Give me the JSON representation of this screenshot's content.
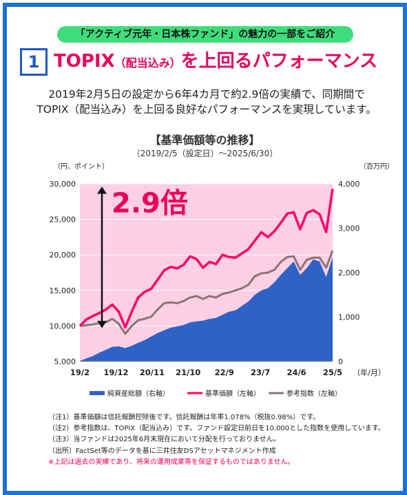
{
  "badge": "「アクティブ元年・日本株ファンド」の魅力の一部をご紹介",
  "section_number": "1",
  "headline": {
    "part1": "TOPIX",
    "part2": "（配当込み）",
    "part3": "を上回るパフォーマンス"
  },
  "lead": {
    "line1": "2019年2月5日の設定から6年4カ月で約2.9倍の実績で、同期間で",
    "line2": "TOPIX（配当込み）を上回る良好なパフォーマンスを実現しています。"
  },
  "colors": {
    "accent_pink": "#e8005a",
    "brand_blue": "#1f6fd6",
    "badge_green": "#3fdc7c",
    "area_blue": "#2f62c6",
    "nav_pink": "#ff0066",
    "index_gray": "#8a7474",
    "band_pink": "#fdd0e4"
  },
  "chart_data": {
    "type": "line",
    "title": "【基準価額等の推移】",
    "subtitle": "（2019/2/5（設定日）～2025/6/30）",
    "ylabel_left": "（円、ポイント）",
    "ylabel_right": "（百万円）",
    "xlabel": "（年/月）",
    "ylim_left": [
      5000,
      30000
    ],
    "ylim_right": [
      0,
      4000
    ],
    "yticks_left": [
      "5,000",
      "10,000",
      "15,000",
      "20,000",
      "25,000",
      "30,000"
    ],
    "yticks_right": [
      "0",
      "1,000",
      "2,000",
      "3,000",
      "4,000"
    ],
    "x_ticks": [
      "19/2",
      "19/12",
      "20/11",
      "21/10",
      "22/9",
      "23/7",
      "24/6",
      "25/5"
    ],
    "annotation": "2.9倍",
    "legend": [
      "純資産総額（右軸）",
      "基準価額（左軸）",
      "参考指数（左軸）"
    ],
    "x": [
      "2019/02",
      "2019/04",
      "2019/06",
      "2019/08",
      "2019/10",
      "2019/12",
      "2020/02",
      "2020/03",
      "2020/04",
      "2020/06",
      "2020/08",
      "2020/10",
      "2020/12",
      "2021/02",
      "2021/04",
      "2021/06",
      "2021/08",
      "2021/10",
      "2021/12",
      "2022/02",
      "2022/04",
      "2022/06",
      "2022/08",
      "2022/10",
      "2022/12",
      "2023/02",
      "2023/04",
      "2023/06",
      "2023/08",
      "2023/10",
      "2023/12",
      "2024/02",
      "2024/04",
      "2024/06",
      "2024/08",
      "2024/10",
      "2024/12",
      "2025/02",
      "2025/04",
      "2025/06"
    ],
    "series": [
      {
        "name": "純資産総額（右軸）",
        "axis": "right",
        "values": [
          10,
          70,
          120,
          200,
          260,
          330,
          340,
          300,
          350,
          420,
          480,
          560,
          640,
          700,
          760,
          790,
          820,
          880,
          900,
          920,
          960,
          980,
          1050,
          1120,
          1150,
          1250,
          1350,
          1500,
          1600,
          1650,
          1780,
          1950,
          2100,
          2250,
          1950,
          2100,
          2300,
          2250,
          1900,
          2350
        ]
      },
      {
        "name": "基準価額（左軸）",
        "axis": "left",
        "values": [
          10000,
          10900,
          11400,
          11800,
          12300,
          13000,
          12000,
          9800,
          12000,
          14000,
          14800,
          15200,
          16500,
          17800,
          18300,
          18100,
          18600,
          19800,
          19400,
          18200,
          19000,
          18700,
          20000,
          19700,
          19600,
          20200,
          20800,
          22000,
          23200,
          22500,
          23300,
          24500,
          25800,
          26000,
          23600,
          25900,
          26300,
          25700,
          23200,
          29300
        ]
      },
      {
        "name": "参考指数（左軸）",
        "axis": "left",
        "values": [
          10000,
          10100,
          10200,
          10400,
          10500,
          11000,
          10300,
          8900,
          10000,
          10800,
          11000,
          11300,
          12300,
          13200,
          13300,
          13200,
          13500,
          14000,
          14200,
          13800,
          14200,
          14000,
          14500,
          14700,
          15000,
          15300,
          15800,
          17000,
          17400,
          17500,
          17900,
          19000,
          19700,
          19800,
          17900,
          19300,
          19600,
          19600,
          18200,
          20600
        ]
      }
    ]
  },
  "notes": {
    "n1": "（注1）基準価額は信託報酬控除後です。信託報酬は年率1.078%（税抜0.98%）です。",
    "n2": "（注2）参考指数は、TOPIX（配当込み）です。ファンド設定日前日を10,000とした指数を使用しています。",
    "n3": "（注3）当ファンドは2025年6月末現在において分配を行っておりません。",
    "n4": "（出所）FactSet等のデータを基に三井住友DSアセットマネジメント作成",
    "warn": "※上記は過去の実績であり、将来の運用成果等を保証するものではありません。"
  }
}
